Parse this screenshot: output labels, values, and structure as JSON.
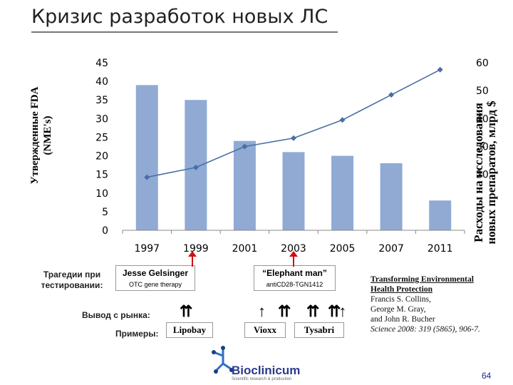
{
  "title": "Кризис разработок новых ЛС",
  "y_left_label_line1": "Утвержденные FDA",
  "y_left_label_line2": "(NME's)",
  "y_right_label_line1": "Расходы на исследования",
  "y_right_label_line2": "новых препаратов, млрд $",
  "chart_data": {
    "type": "bar",
    "categories": [
      "1997",
      "1999",
      "2001",
      "2003",
      "2005",
      "2007",
      "2011"
    ],
    "values": [
      39,
      35,
      24,
      21,
      20,
      18,
      8
    ],
    "bar_color": "#90aad4",
    "left_ticks": [
      "45",
      "40",
      "35",
      "30",
      "25",
      "20",
      "15",
      "10",
      "5",
      "0"
    ],
    "right_ticks": [
      "60",
      "50",
      "40",
      "30",
      "20"
    ],
    "ylim_left": [
      0,
      45
    ],
    "ylim_right": [
      0,
      60
    ],
    "line_series": {
      "values": [
        19,
        22.5,
        30,
        33,
        39.5,
        48.5,
        57.5
      ],
      "color": "#4a6fa5"
    },
    "xlabel": "",
    "grid": false
  },
  "annotations": {
    "tragedies_line1": "Трагедии при",
    "tragedies_line2": "тестировании:",
    "case1_title": "Jesse Gelsinger",
    "case1_sub": "OTC gene therapy",
    "case2_title": "“Elephant man”",
    "case2_sub": "antiCD28-TGN1412",
    "withdrawal_label": "Вывод с рынка:",
    "examples_label": "Примеры:",
    "drug1": "Lipobay",
    "drug2": "Vioxx",
    "drug3": "Tysabri"
  },
  "reference": {
    "line1": "Transforming Environmental",
    "line2": "Health Protection",
    "line3": "Francis S. Collins,",
    "line4": "George M. Gray,",
    "line5": "and John R. Bucher",
    "line6": "Science 2008: 319 (5865), 906-7."
  },
  "logo": {
    "name": "Bioclinicum",
    "tagline": "Scientific research & production"
  },
  "page_number": "64"
}
